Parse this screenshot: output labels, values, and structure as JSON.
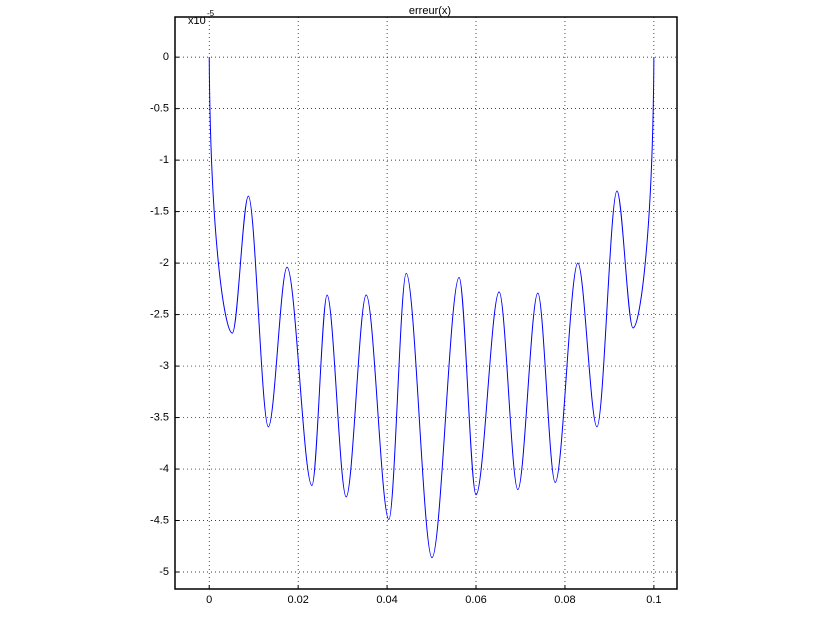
{
  "chart_data": {
    "type": "line",
    "title": "erreur(x)",
    "y_multiplier": "x10",
    "y_multiplier_exponent": "-5",
    "xlim": [
      -0.0077,
      0.1052
    ],
    "ylim": [
      -5.165,
      0.39
    ],
    "xticks": [
      0,
      0.02,
      0.04,
      0.06,
      0.08,
      0.1
    ],
    "yticks": [
      0,
      -0.5,
      -1,
      -1.5,
      -2,
      -2.5,
      -3,
      -3.5,
      -4,
      -4.5,
      -5
    ],
    "grid": true,
    "series": [
      {
        "color": "#0000ff",
        "x": [
          0,
          0.0052,
          0.0088,
          0.0133,
          0.0175,
          0.0231,
          0.0265,
          0.0308,
          0.0353,
          0.0404,
          0.0443,
          0.0501,
          0.0562,
          0.06,
          0.0652,
          0.0694,
          0.0739,
          0.0778,
          0.0829,
          0.0872,
          0.0917,
          0.0953,
          0.1
        ],
        "values": [
          0,
          -2.68,
          -1.35,
          -3.59,
          -2.04,
          -4.16,
          -2.31,
          -4.27,
          -2.31,
          -4.49,
          -2.1,
          -4.86,
          -2.14,
          -4.25,
          -2.28,
          -4.2,
          -2.29,
          -4.13,
          -2.0,
          -3.59,
          -1.3,
          -2.63,
          0
        ]
      }
    ]
  }
}
